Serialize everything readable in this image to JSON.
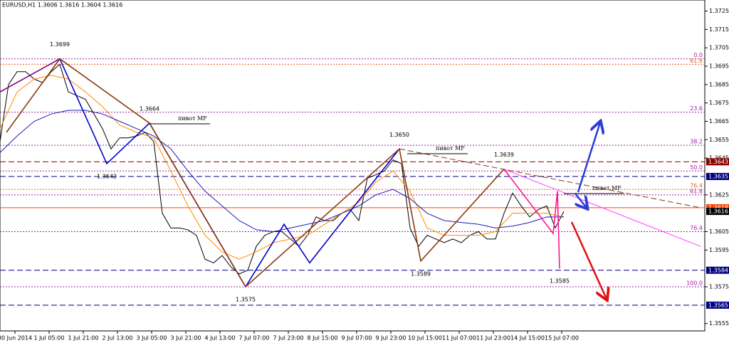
{
  "chart_data": {
    "type": "line",
    "title": "EURUSD,H1  1.3606 1.3616 1.3604 1.3616",
    "xlim": [
      0,
      330
    ],
    "xticks": [
      {
        "value": 7,
        "label": "30 Jun 2014"
      },
      {
        "value": 23,
        "label": "1 Jul 05:00"
      },
      {
        "value": 39,
        "label": "1 Jul 21:00"
      },
      {
        "value": 55,
        "label": "2 Jul 13:00"
      },
      {
        "value": 71,
        "label": "3 Jul 05:00"
      },
      {
        "value": 87,
        "label": "3 Jul 21:00"
      },
      {
        "value": 103,
        "label": "4 Jul 13:00"
      },
      {
        "value": 119,
        "label": "7 Jul 07:00"
      },
      {
        "value": 135,
        "label": "7 Jul 23:00"
      },
      {
        "value": 151,
        "label": "8 Jul 15:00"
      },
      {
        "value": 167,
        "label": "9 Jul 07:00"
      },
      {
        "value": 183,
        "label": "9 Jul 23:00"
      },
      {
        "value": 199,
        "label": "10 Jul 15:00"
      },
      {
        "value": 215,
        "label": "11 Jul 07:00"
      },
      {
        "value": 231,
        "label": "11 Jul 23:00"
      },
      {
        "value": 247,
        "label": "14 Jul 15:00"
      },
      {
        "value": 263,
        "label": "15 Jul 07:00"
      }
    ],
    "ylim": [
      1.3551,
      1.3731
    ],
    "yticks": [
      1.3555,
      1.3575,
      1.3595,
      1.3605,
      1.3625,
      1.3645,
      1.3655,
      1.3665,
      1.3675,
      1.3685,
      1.3695,
      1.3705,
      1.3715,
      1.3725
    ],
    "series": [
      {
        "color": "#000000",
        "x": [
          0,
          4,
          8,
          12,
          16,
          20,
          24,
          28,
          32,
          36,
          40,
          44,
          48,
          52,
          56,
          60,
          64,
          68,
          72,
          76,
          80,
          84,
          88,
          92,
          96,
          100,
          104,
          108,
          112,
          116,
          120,
          124,
          128,
          132,
          136,
          140,
          144,
          148,
          152,
          156,
          160,
          164,
          168,
          172,
          176,
          180,
          184,
          188,
          192,
          196,
          200,
          204,
          208,
          212,
          216,
          220,
          224,
          228,
          232,
          236,
          240,
          244,
          248,
          252,
          256,
          260,
          264
        ],
        "values": [
          1.3654,
          1.3685,
          1.3692,
          1.3692,
          1.3688,
          1.3686,
          1.3692,
          1.3696,
          1.3681,
          1.3679,
          1.3677,
          1.3669,
          1.3661,
          1.365,
          1.3656,
          1.3656,
          1.3657,
          1.3659,
          1.3654,
          1.3615,
          1.3607,
          1.3607,
          1.3606,
          1.3603,
          1.359,
          1.3588,
          1.3592,
          1.3586,
          1.3582,
          1.3584,
          1.3597,
          1.3603,
          1.3605,
          1.3605,
          1.3601,
          1.3597,
          1.3603,
          1.3613,
          1.3611,
          1.3611,
          1.3615,
          1.3617,
          1.3611,
          1.3634,
          1.3636,
          1.3638,
          1.3644,
          1.3642,
          1.3607,
          1.3597,
          1.3603,
          1.3601,
          1.3599,
          1.3601,
          1.3599,
          1.3603,
          1.3605,
          1.3601,
          1.3601,
          1.3615,
          1.3626,
          1.3619,
          1.3613,
          1.3617,
          1.3619,
          1.3607,
          1.3616
        ]
      },
      {
        "color": "#ff8c00",
        "x": [
          0,
          8,
          16,
          24,
          32,
          40,
          48,
          56,
          64,
          72,
          80,
          88,
          96,
          104,
          112,
          120,
          128,
          136,
          144,
          152,
          160,
          168,
          176,
          184,
          192,
          200,
          208,
          216,
          224,
          232,
          240,
          248,
          256,
          264
        ],
        "values": [
          1.3661,
          1.3681,
          1.3688,
          1.369,
          1.3688,
          1.3681,
          1.3673,
          1.3663,
          1.3659,
          1.3656,
          1.3638,
          1.3619,
          1.3603,
          1.3594,
          1.359,
          1.3594,
          1.3599,
          1.3601,
          1.3603,
          1.3609,
          1.3615,
          1.3621,
          1.3632,
          1.3638,
          1.3627,
          1.3607,
          1.3603,
          1.3603,
          1.3603,
          1.3605,
          1.3615,
          1.3615,
          1.3615,
          1.3613
        ]
      },
      {
        "color": "#1c1cb4",
        "x": [
          0,
          8,
          16,
          24,
          32,
          40,
          48,
          56,
          64,
          72,
          80,
          88,
          96,
          104,
          112,
          120,
          128,
          136,
          144,
          152,
          160,
          168,
          176,
          184,
          192,
          200,
          208,
          216,
          224,
          232,
          240,
          248,
          256,
          264
        ],
        "values": [
          1.3648,
          1.3657,
          1.3665,
          1.3669,
          1.3671,
          1.3671,
          1.3669,
          1.3665,
          1.3661,
          1.3657,
          1.365,
          1.3638,
          1.3627,
          1.3619,
          1.3611,
          1.3606,
          1.3605,
          1.3607,
          1.3609,
          1.3611,
          1.3615,
          1.3619,
          1.3625,
          1.3628,
          1.3623,
          1.3615,
          1.3611,
          1.361,
          1.3609,
          1.3607,
          1.3608,
          1.361,
          1.3613,
          1.3613
        ]
      },
      {
        "color": "#0000cd",
        "x": [
          28,
          50,
          70,
          115,
          133,
          145,
          187
        ],
        "values": [
          1.3699,
          1.3642,
          1.3664,
          1.3575,
          1.3609,
          1.3588,
          1.365
        ]
      },
      {
        "color": "#8b3a0f",
        "x": [
          3,
          28,
          70,
          115,
          187,
          197,
          236
        ],
        "values": [
          1.3659,
          1.3699,
          1.3664,
          1.3575,
          1.365,
          1.3589,
          1.3639
        ]
      },
      {
        "color": "#800080",
        "x": [
          0,
          28
        ],
        "values": [
          1.3681,
          1.3699
        ]
      },
      {
        "color": "#ff1493",
        "x": [
          236,
          259,
          261,
          262
        ],
        "values": [
          1.3639,
          1.3604,
          1.3627,
          1.3585
        ]
      }
    ],
    "trend_lines": [
      {
        "color": "#8b3a0f",
        "style": "dashed",
        "x": [
          187,
          328
        ],
        "values": [
          1.365,
          1.3618
        ]
      },
      {
        "color": "#ff40ff",
        "style": "solid",
        "x": [
          236,
          328
        ],
        "values": [
          1.3639,
          1.3597
        ]
      }
    ],
    "pivots": {
      "x": [
        28,
        70,
        50,
        187,
        115,
        197,
        236,
        262
      ],
      "values": [
        1.3699,
        1.3664,
        1.3642,
        1.365,
        1.3575,
        1.3589,
        1.3639,
        1.3585
      ],
      "value_labels": [
        "1.3699",
        "1.3664",
        "1.3642",
        "1.3650",
        "1.3575",
        "1.3589",
        "1.3639",
        "1.3585"
      ],
      "sides": [
        "above",
        "above",
        "below",
        "above",
        "below",
        "below",
        "above",
        "below"
      ]
    },
    "mf_labels": [
      "пивот MF",
      "пивот MF",
      "пивот MF"
    ],
    "fib_levels": [
      {
        "price": 1.3699,
        "label": "0.0",
        "color": "#a020a0"
      },
      {
        "price": 1.3696,
        "label": "61.8",
        "color": "#e06020"
      },
      {
        "price": 1.367,
        "label": "23.6",
        "color": "#a020a0"
      },
      {
        "price": 1.3652,
        "label": "38.2",
        "color": "#a020a0"
      },
      {
        "price": 1.3638,
        "label": "50.0",
        "color": "#a020a0"
      },
      {
        "price": 1.3628,
        "label": "76.4",
        "color": "#e06020"
      },
      {
        "price": 1.3625,
        "label": "61.8",
        "color": "#a020a0"
      },
      {
        "price": 1.3605,
        "label": "76.4",
        "color": "#a020a0"
      },
      {
        "price": 1.3575,
        "label": "100.0",
        "color": "#a020a0"
      }
    ],
    "price_levels": [
      {
        "value": 1.3643,
        "color": "#8b0000",
        "style": "dashed"
      },
      {
        "value": 1.3635,
        "color": "#000080",
        "style": "dashed"
      },
      {
        "value": 1.3618,
        "color": "#ff4500",
        "style": "solid"
      },
      {
        "value": 1.3616,
        "color": "#000000",
        "style": "none"
      },
      {
        "value": 1.3584,
        "color": "#000080",
        "style": "dashed"
      },
      {
        "value": 1.3565,
        "color": "#000080",
        "style": "dashed"
      }
    ]
  }
}
